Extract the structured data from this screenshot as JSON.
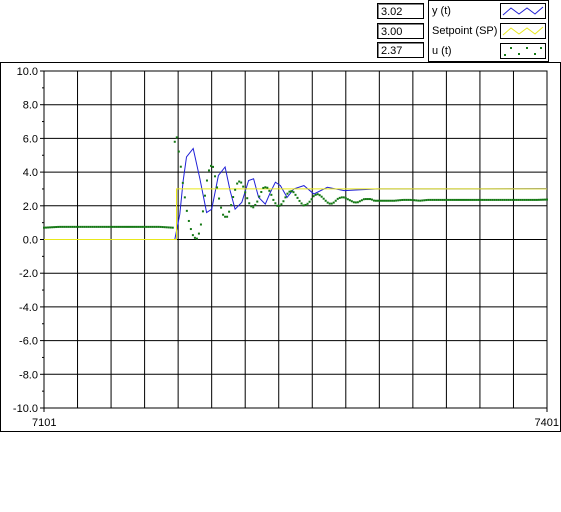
{
  "readouts": [
    "3.02",
    "3.00",
    "2.37"
  ],
  "legend": [
    {
      "label": "y (t)",
      "color": "#1f1fd6",
      "style": "line"
    },
    {
      "label": "Setpoint (SP)",
      "color": "#e8e81a",
      "style": "line"
    },
    {
      "label": "u (t)",
      "color": "#147814",
      "style": "points"
    }
  ],
  "chart_data": {
    "type": "line",
    "title": "",
    "xlabel": "",
    "ylabel": "",
    "xlim": [
      7101,
      7401
    ],
    "ylim": [
      -10,
      10
    ],
    "x_tick_labels": [
      "7101",
      "7401"
    ],
    "y_tick_labels": [
      "10.0",
      "8.0",
      "6.0",
      "4.0",
      "2.0",
      "0.0",
      "-2.0",
      "-4.0",
      "-6.0",
      "-8.0",
      "-10.0"
    ],
    "grid": true,
    "series": [
      {
        "name": "y (t)",
        "color": "#1f1fd6",
        "x": [
          7101,
          7179,
          7182,
          7184,
          7186,
          7190,
          7194,
          7198,
          7201,
          7205,
          7209,
          7212,
          7215,
          7219,
          7223,
          7226,
          7229,
          7233,
          7236,
          7239,
          7242,
          7246,
          7250,
          7256,
          7262,
          7270,
          7280,
          7300,
          7330,
          7360,
          7401
        ],
        "y": [
          0.0,
          0.0,
          1.5,
          3.5,
          4.9,
          5.4,
          3.6,
          1.6,
          1.8,
          3.8,
          4.3,
          2.9,
          1.8,
          2.2,
          3.5,
          3.6,
          2.5,
          2.1,
          2.8,
          3.4,
          3.2,
          2.5,
          3.0,
          3.2,
          2.7,
          3.1,
          2.9,
          3.0,
          3.0,
          3.0,
          3.02
        ]
      },
      {
        "name": "Setpoint (SP)",
        "color": "#e8e81a",
        "x": [
          7101,
          7180,
          7180,
          7401
        ],
        "y": [
          0.0,
          0.0,
          3.0,
          3.0
        ]
      },
      {
        "name": "u (t)",
        "color": "#147814",
        "x": [
          7101,
          7110,
          7120,
          7130,
          7140,
          7150,
          7160,
          7170,
          7178,
          7179,
          7180,
          7182,
          7184,
          7186,
          7188,
          7190,
          7192,
          7194,
          7196,
          7198,
          7200,
          7202,
          7204,
          7206,
          7208,
          7210,
          7212,
          7214,
          7216,
          7218,
          7220,
          7222,
          7224,
          7226,
          7228,
          7230,
          7232,
          7234,
          7236,
          7238,
          7240,
          7242,
          7244,
          7246,
          7248,
          7250,
          7252,
          7254,
          7256,
          7258,
          7260,
          7262,
          7264,
          7266,
          7268,
          7270,
          7272,
          7274,
          7276,
          7278,
          7280,
          7282,
          7284,
          7286,
          7288,
          7290,
          7292,
          7294,
          7296,
          7298,
          7300,
          7305,
          7310,
          7315,
          7320,
          7325,
          7330,
          7335,
          7340,
          7345,
          7350,
          7355,
          7360,
          7365,
          7370,
          7375,
          7380,
          7385,
          7390,
          7395,
          7401
        ],
        "y": [
          0.7,
          0.75,
          0.75,
          0.75,
          0.75,
          0.75,
          0.75,
          0.75,
          0.7,
          5.8,
          6.2,
          4.8,
          3.2,
          1.8,
          0.8,
          0.2,
          0.0,
          0.5,
          1.8,
          3.4,
          4.4,
          4.3,
          3.2,
          2.1,
          1.4,
          1.3,
          1.8,
          2.6,
          3.3,
          3.5,
          3.1,
          2.5,
          2.0,
          1.9,
          2.2,
          2.7,
          3.1,
          3.1,
          2.8,
          2.3,
          2.0,
          2.0,
          2.3,
          2.7,
          2.9,
          2.8,
          2.5,
          2.2,
          2.0,
          2.1,
          2.3,
          2.6,
          2.7,
          2.6,
          2.4,
          2.2,
          2.1,
          2.2,
          2.4,
          2.5,
          2.5,
          2.4,
          2.3,
          2.2,
          2.2,
          2.3,
          2.4,
          2.4,
          2.4,
          2.3,
          2.3,
          2.3,
          2.3,
          2.35,
          2.35,
          2.3,
          2.35,
          2.35,
          2.35,
          2.35,
          2.35,
          2.35,
          2.35,
          2.35,
          2.35,
          2.35,
          2.35,
          2.35,
          2.35,
          2.35,
          2.37
        ]
      }
    ]
  }
}
